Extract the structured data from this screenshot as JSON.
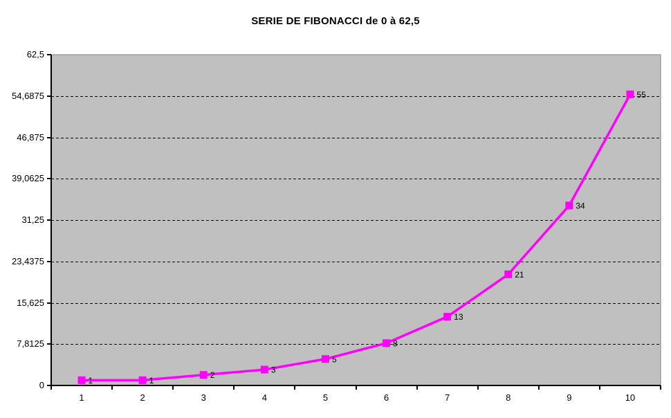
{
  "chart_data": {
    "type": "line",
    "title": "SERIE DE FIBONACCI de 0 à 62,5",
    "x": [
      1,
      2,
      3,
      4,
      5,
      6,
      7,
      8,
      9,
      10
    ],
    "values": [
      1,
      1,
      2,
      3,
      5,
      8,
      13,
      21,
      34,
      55
    ],
    "data_labels": [
      "1",
      "1",
      "2",
      "3",
      "5",
      "8",
      "13",
      "21",
      "34",
      "55"
    ],
    "xtick_labels": [
      "1",
      "2",
      "3",
      "4",
      "5",
      "6",
      "7",
      "8",
      "9",
      "10"
    ],
    "ytick_labels": [
      "0",
      "7,8125",
      "15,625",
      "23,4375",
      "31,25",
      "39,0625",
      "46,875",
      "54,6875",
      "62,5"
    ],
    "ytick_values": [
      0,
      7.8125,
      15.625,
      23.4375,
      31.25,
      39.0625,
      46.875,
      54.6875,
      62.5
    ],
    "ylim": [
      0,
      62.5
    ],
    "xlabel": "",
    "ylabel": "",
    "legend": "none",
    "grid": "horizontal-dashed",
    "colors": {
      "series_line": "#FF00FF",
      "marker_fill": "#FF00FF",
      "plot_background": "#C0C0C0",
      "plot_border": "#808080",
      "gridline": "#000000",
      "axis": "#000000",
      "text": "#000000",
      "page_background": "#FFFFFF"
    }
  }
}
